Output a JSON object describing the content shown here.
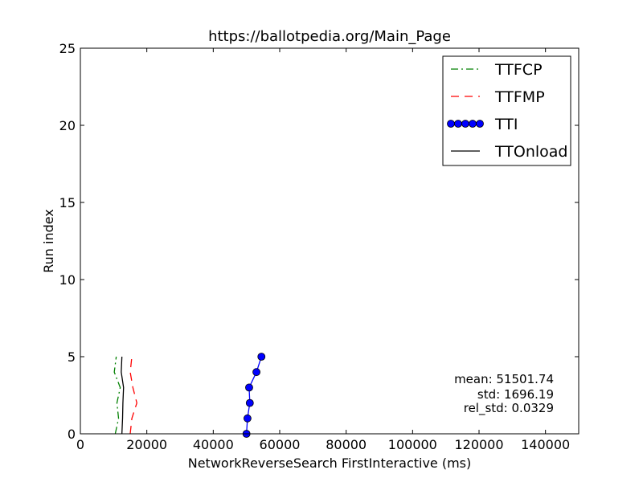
{
  "chart_data": {
    "type": "line",
    "title": "https://ballotpedia.org/Main_Page",
    "xlabel": "NetworkReverseSearch FirstInteractive (ms)",
    "ylabel": "Run index",
    "xlim": [
      0,
      150000
    ],
    "ylim": [
      0,
      25
    ],
    "xticks": [
      0,
      20000,
      40000,
      60000,
      80000,
      100000,
      120000,
      140000
    ],
    "xtick_labels": [
      "0",
      "20000",
      "40000",
      "60000",
      "80000",
      "100000",
      "120000",
      "140000"
    ],
    "yticks": [
      0,
      5,
      10,
      15,
      20,
      25
    ],
    "ytick_labels": [
      "0",
      "5",
      "10",
      "15",
      "20",
      "25"
    ],
    "grid": false,
    "legend_position": "top-right",
    "series": [
      {
        "name": "TTFCP",
        "style": "dashdot",
        "color": "#008000",
        "marker": "none",
        "x": [
          10500,
          11500,
          11000,
          12000,
          10200,
          10800
        ],
        "y": [
          0,
          1,
          2,
          3,
          4,
          5
        ]
      },
      {
        "name": "TTFMP",
        "style": "dashed",
        "color": "#ff0000",
        "marker": "none",
        "x": [
          15000,
          15500,
          17000,
          15800,
          15000,
          15500
        ],
        "y": [
          0,
          1,
          2,
          3,
          4,
          5
        ]
      },
      {
        "name": "TTI",
        "style": "solid",
        "color": "#0000ff",
        "marker": "circle",
        "x": [
          50000,
          50300,
          51000,
          50800,
          53000,
          54500
        ],
        "y": [
          0,
          1,
          2,
          3,
          4,
          5
        ]
      },
      {
        "name": "TTOnload",
        "style": "solid",
        "color": "#000000",
        "marker": "none",
        "x": [
          12500,
          12700,
          12800,
          13000,
          12300,
          12500
        ],
        "y": [
          0,
          1,
          2,
          3,
          4,
          5
        ]
      }
    ],
    "annotations": {
      "mean": "mean: 51501.74",
      "std": "std: 1696.19",
      "rel_std": "rel_std: 0.0329"
    }
  }
}
